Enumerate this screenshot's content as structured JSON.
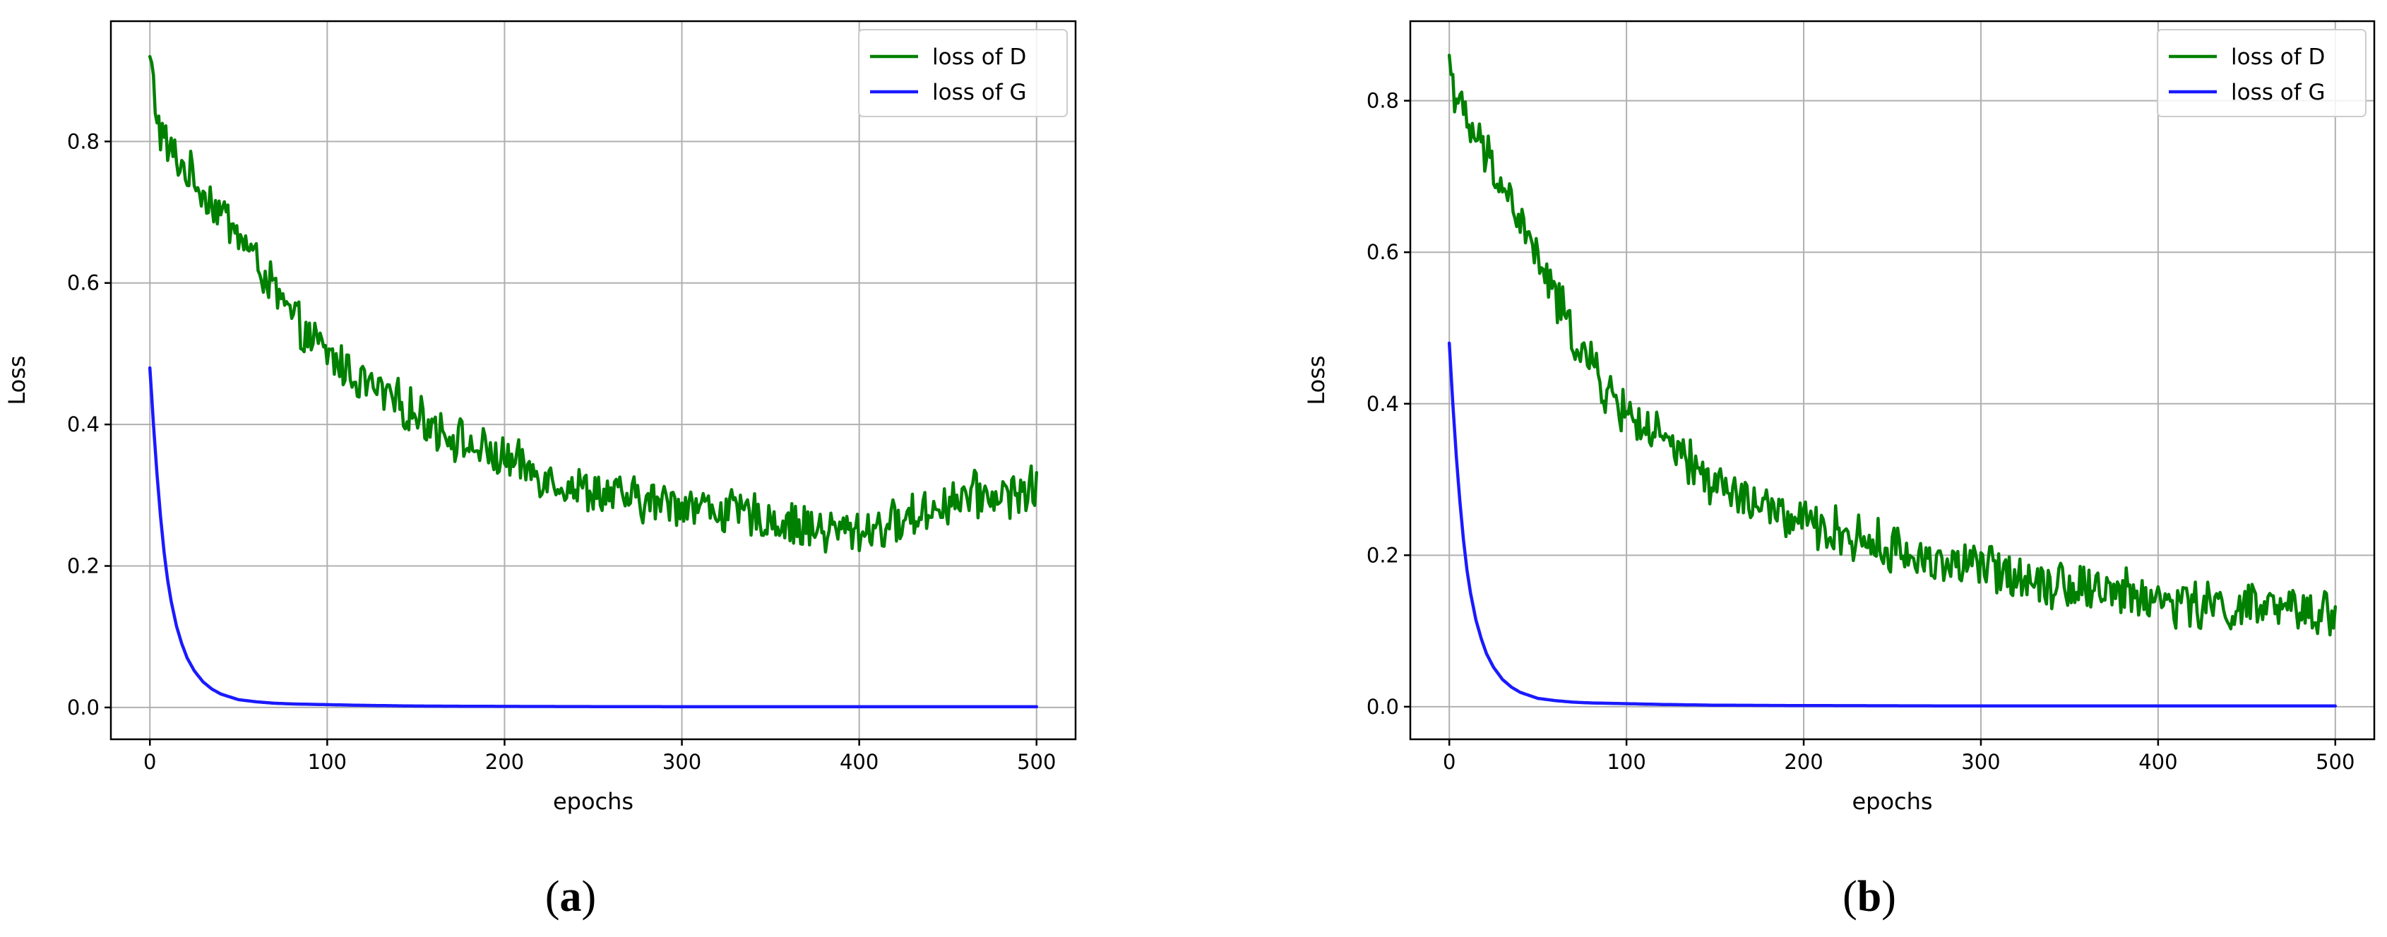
{
  "colors": {
    "loss_d": "#008000",
    "loss_g": "#1a1aff",
    "grid": "#b0b0b0"
  },
  "chart_data": [
    {
      "type": "line",
      "panel_label": "a",
      "xlabel": "epochs",
      "ylabel": "Loss",
      "xlim": [
        -22,
        522
      ],
      "ylim": [
        -0.045,
        0.97
      ],
      "xticks": [
        0,
        100,
        200,
        300,
        400,
        500
      ],
      "yticks": [
        0.0,
        0.2,
        0.4,
        0.6,
        0.8
      ],
      "ytick_labels": [
        "0.0",
        "0.2",
        "0.4",
        "0.6",
        "0.8"
      ],
      "grid": true,
      "legend_position": "top-right",
      "series": [
        {
          "name": "loss of D",
          "color": "#008000",
          "noisy": true,
          "x": [
            0,
            5,
            10,
            20,
            30,
            40,
            50,
            60,
            70,
            80,
            90,
            100,
            120,
            140,
            160,
            180,
            200,
            220,
            240,
            260,
            280,
            300,
            320,
            340,
            360,
            380,
            400,
            420,
            440,
            460,
            480,
            500
          ],
          "y": [
            0.92,
            0.82,
            0.79,
            0.76,
            0.73,
            0.7,
            0.67,
            0.63,
            0.59,
            0.55,
            0.52,
            0.5,
            0.46,
            0.43,
            0.4,
            0.37,
            0.35,
            0.33,
            0.31,
            0.3,
            0.29,
            0.29,
            0.28,
            0.27,
            0.26,
            0.25,
            0.25,
            0.26,
            0.28,
            0.3,
            0.3,
            0.31
          ]
        },
        {
          "name": "loss of G",
          "color": "#1a1aff",
          "noisy": false,
          "x": [
            0,
            2,
            4,
            6,
            8,
            10,
            12,
            15,
            18,
            21,
            25,
            30,
            35,
            40,
            50,
            60,
            70,
            80,
            100,
            120,
            150,
            200,
            300,
            400,
            500
          ],
          "y": [
            0.48,
            0.4,
            0.33,
            0.27,
            0.22,
            0.18,
            0.15,
            0.115,
            0.09,
            0.07,
            0.052,
            0.036,
            0.026,
            0.019,
            0.011,
            0.008,
            0.006,
            0.005,
            0.004,
            0.003,
            0.002,
            0.0015,
            0.001,
            0.001,
            0.001
          ]
        }
      ]
    },
    {
      "type": "line",
      "panel_label": "b",
      "xlabel": "epochs",
      "ylabel": "Loss",
      "xlim": [
        -22,
        522
      ],
      "ylim": [
        -0.043,
        0.905
      ],
      "xticks": [
        0,
        100,
        200,
        300,
        400,
        500
      ],
      "yticks": [
        0.0,
        0.2,
        0.4,
        0.6,
        0.8
      ],
      "ytick_labels": [
        "0.0",
        "0.2",
        "0.4",
        "0.6",
        "0.8"
      ],
      "grid": true,
      "legend_position": "top-right",
      "series": [
        {
          "name": "loss of D",
          "color": "#008000",
          "noisy": true,
          "x": [
            0,
            5,
            10,
            20,
            30,
            40,
            50,
            60,
            70,
            80,
            90,
            100,
            120,
            140,
            160,
            180,
            200,
            220,
            240,
            260,
            280,
            300,
            320,
            340,
            360,
            380,
            400,
            420,
            440,
            460,
            480,
            500
          ],
          "y": [
            0.86,
            0.79,
            0.77,
            0.73,
            0.69,
            0.64,
            0.59,
            0.54,
            0.49,
            0.45,
            0.41,
            0.39,
            0.35,
            0.31,
            0.28,
            0.26,
            0.24,
            0.23,
            0.215,
            0.2,
            0.19,
            0.185,
            0.175,
            0.165,
            0.16,
            0.15,
            0.14,
            0.135,
            0.13,
            0.13,
            0.125,
            0.125
          ]
        },
        {
          "name": "loss of G",
          "color": "#1a1aff",
          "noisy": false,
          "x": [
            0,
            2,
            4,
            6,
            8,
            10,
            12,
            15,
            18,
            21,
            25,
            30,
            35,
            40,
            50,
            60,
            70,
            80,
            100,
            120,
            150,
            200,
            300,
            400,
            500
          ],
          "y": [
            0.48,
            0.4,
            0.33,
            0.27,
            0.22,
            0.18,
            0.15,
            0.115,
            0.09,
            0.07,
            0.052,
            0.036,
            0.026,
            0.019,
            0.011,
            0.008,
            0.006,
            0.005,
            0.004,
            0.003,
            0.002,
            0.0015,
            0.001,
            0.001,
            0.001
          ]
        }
      ]
    }
  ]
}
